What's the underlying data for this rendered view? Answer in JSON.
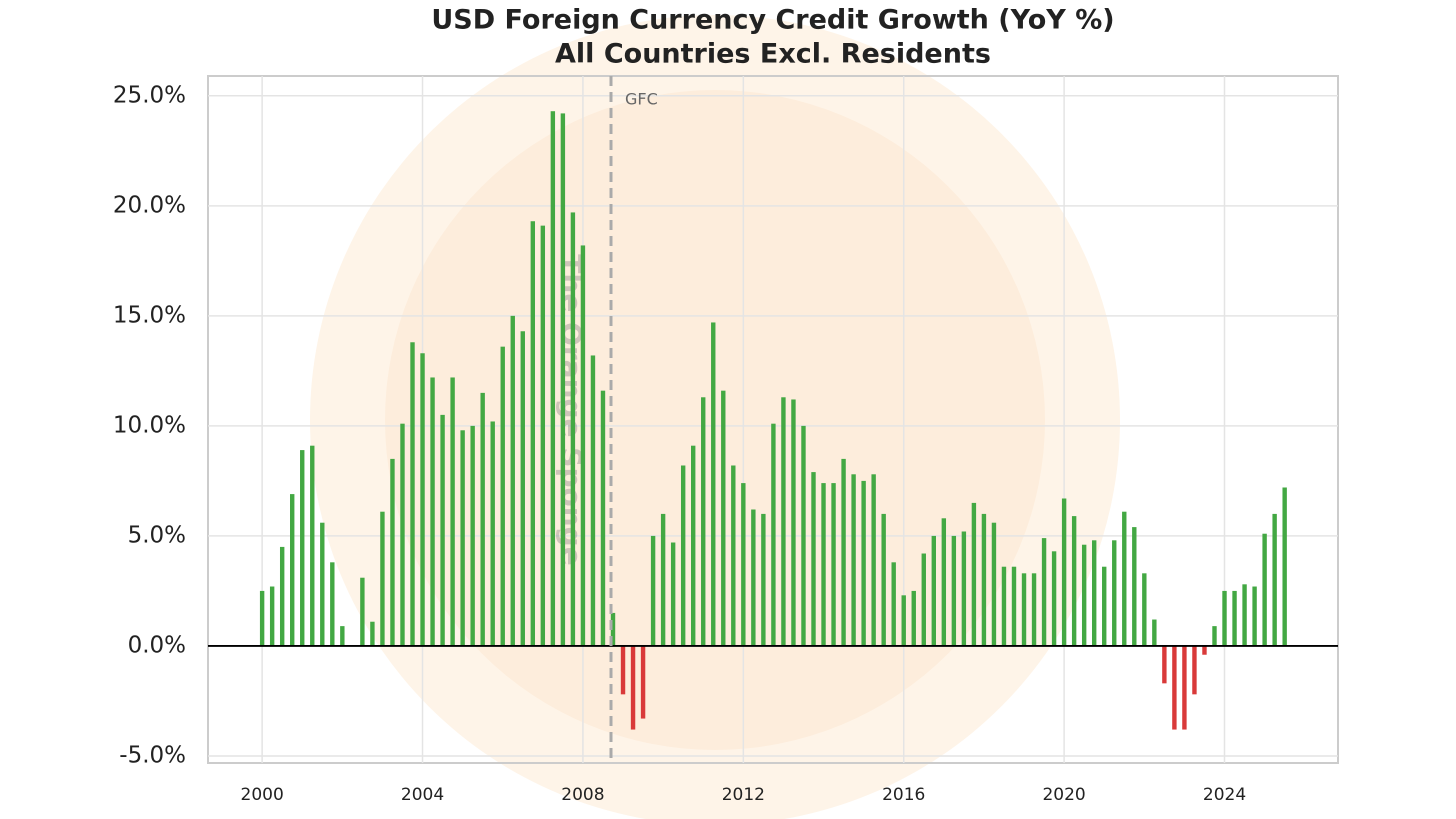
{
  "chart_data": {
    "type": "bar",
    "title": "USD Foreign Currency Credit Growth (YoY %)",
    "subtitle": "All Countries Excl. Residents",
    "watermark": "The Orange Sponge",
    "x": [
      2000,
      2000.25,
      2000.5,
      2000.75,
      2001,
      2001.25,
      2001.5,
      2001.75,
      2002,
      2002.25,
      2002.5,
      2002.75,
      2003,
      2003.25,
      2003.5,
      2003.75,
      2004,
      2004.25,
      2004.5,
      2004.75,
      2005,
      2005.25,
      2005.5,
      2005.75,
      2006,
      2006.25,
      2006.5,
      2006.75,
      2007,
      2007.25,
      2007.5,
      2007.75,
      2008,
      2008.25,
      2008.5,
      2008.75,
      2009,
      2009.25,
      2009.5,
      2009.75,
      2010,
      2010.25,
      2010.5,
      2010.75,
      2011,
      2011.25,
      2011.5,
      2011.75,
      2012,
      2012.25,
      2012.5,
      2012.75,
      2013,
      2013.25,
      2013.5,
      2013.75,
      2014,
      2014.25,
      2014.5,
      2014.75,
      2015,
      2015.25,
      2015.5,
      2015.75,
      2016,
      2016.25,
      2016.5,
      2016.75,
      2017,
      2017.25,
      2017.5,
      2017.75,
      2018,
      2018.25,
      2018.5,
      2018.75,
      2019,
      2019.25,
      2019.5,
      2019.75,
      2020,
      2020.25,
      2020.5,
      2020.75,
      2021,
      2021.25,
      2021.5,
      2021.75,
      2022,
      2022.25,
      2022.5,
      2022.75,
      2023,
      2023.25,
      2023.5,
      2023.75,
      2024,
      2024.25,
      2024.5,
      2024.75,
      2025,
      2025.25,
      2025.5
    ],
    "series": [
      {
        "values": [
          2.5,
          2.7,
          4.5,
          6.9,
          8.9,
          9.1,
          5.6,
          3.8,
          0.9,
          0.0,
          3.1,
          1.1,
          6.1,
          8.5,
          10.1,
          13.8,
          13.3,
          12.2,
          10.5,
          12.2,
          9.8,
          10.0,
          11.5,
          10.2,
          13.6,
          15.0,
          14.3,
          19.3,
          19.1,
          24.3,
          24.2,
          19.7,
          18.2,
          13.2,
          11.6,
          1.5,
          -2.2,
          -3.8,
          -3.3,
          5.0,
          6.0,
          4.7,
          8.2,
          9.1,
          11.3,
          14.7,
          11.6,
          8.2,
          7.4,
          6.2,
          6.0,
          10.1,
          11.3,
          11.2,
          10.0,
          7.9,
          7.4,
          7.4,
          8.5,
          7.8,
          7.5,
          7.8,
          6.0,
          3.8,
          2.3,
          2.5,
          4.2,
          5.0,
          5.8,
          5.0,
          5.2,
          6.5,
          6.0,
          5.6,
          3.6,
          3.6,
          3.3,
          3.3,
          4.9,
          4.3,
          6.7,
          5.9,
          4.6,
          4.8,
          3.6,
          4.8,
          6.1,
          5.4,
          3.3,
          1.2,
          -1.7,
          -3.8,
          -3.8,
          -2.2,
          -0.4,
          0.9,
          2.5,
          2.5,
          2.8,
          2.7,
          5.1,
          6.0,
          7.2
        ]
      }
    ],
    "positive_color": "#43a843",
    "negative_color": "#d93a3a",
    "xlim": [
      1998.65,
      2026.83
    ],
    "ylim": [
      -5.32,
      25.9
    ],
    "xticks": [
      2000,
      2004,
      2008,
      2012,
      2016,
      2020,
      2024
    ],
    "yticks": [
      {
        "value": -5,
        "label": "-5.0%"
      },
      {
        "value": 0,
        "label": "0.0%"
      },
      {
        "value": 5,
        "label": "5.0%"
      },
      {
        "value": 10,
        "label": "10.0%"
      },
      {
        "value": 15,
        "label": "15.0%"
      },
      {
        "value": 20,
        "label": "20.0%"
      },
      {
        "value": 25,
        "label": "25.0%"
      }
    ],
    "grid": true,
    "vline": {
      "x": 2008.7,
      "label": "GFC"
    }
  }
}
